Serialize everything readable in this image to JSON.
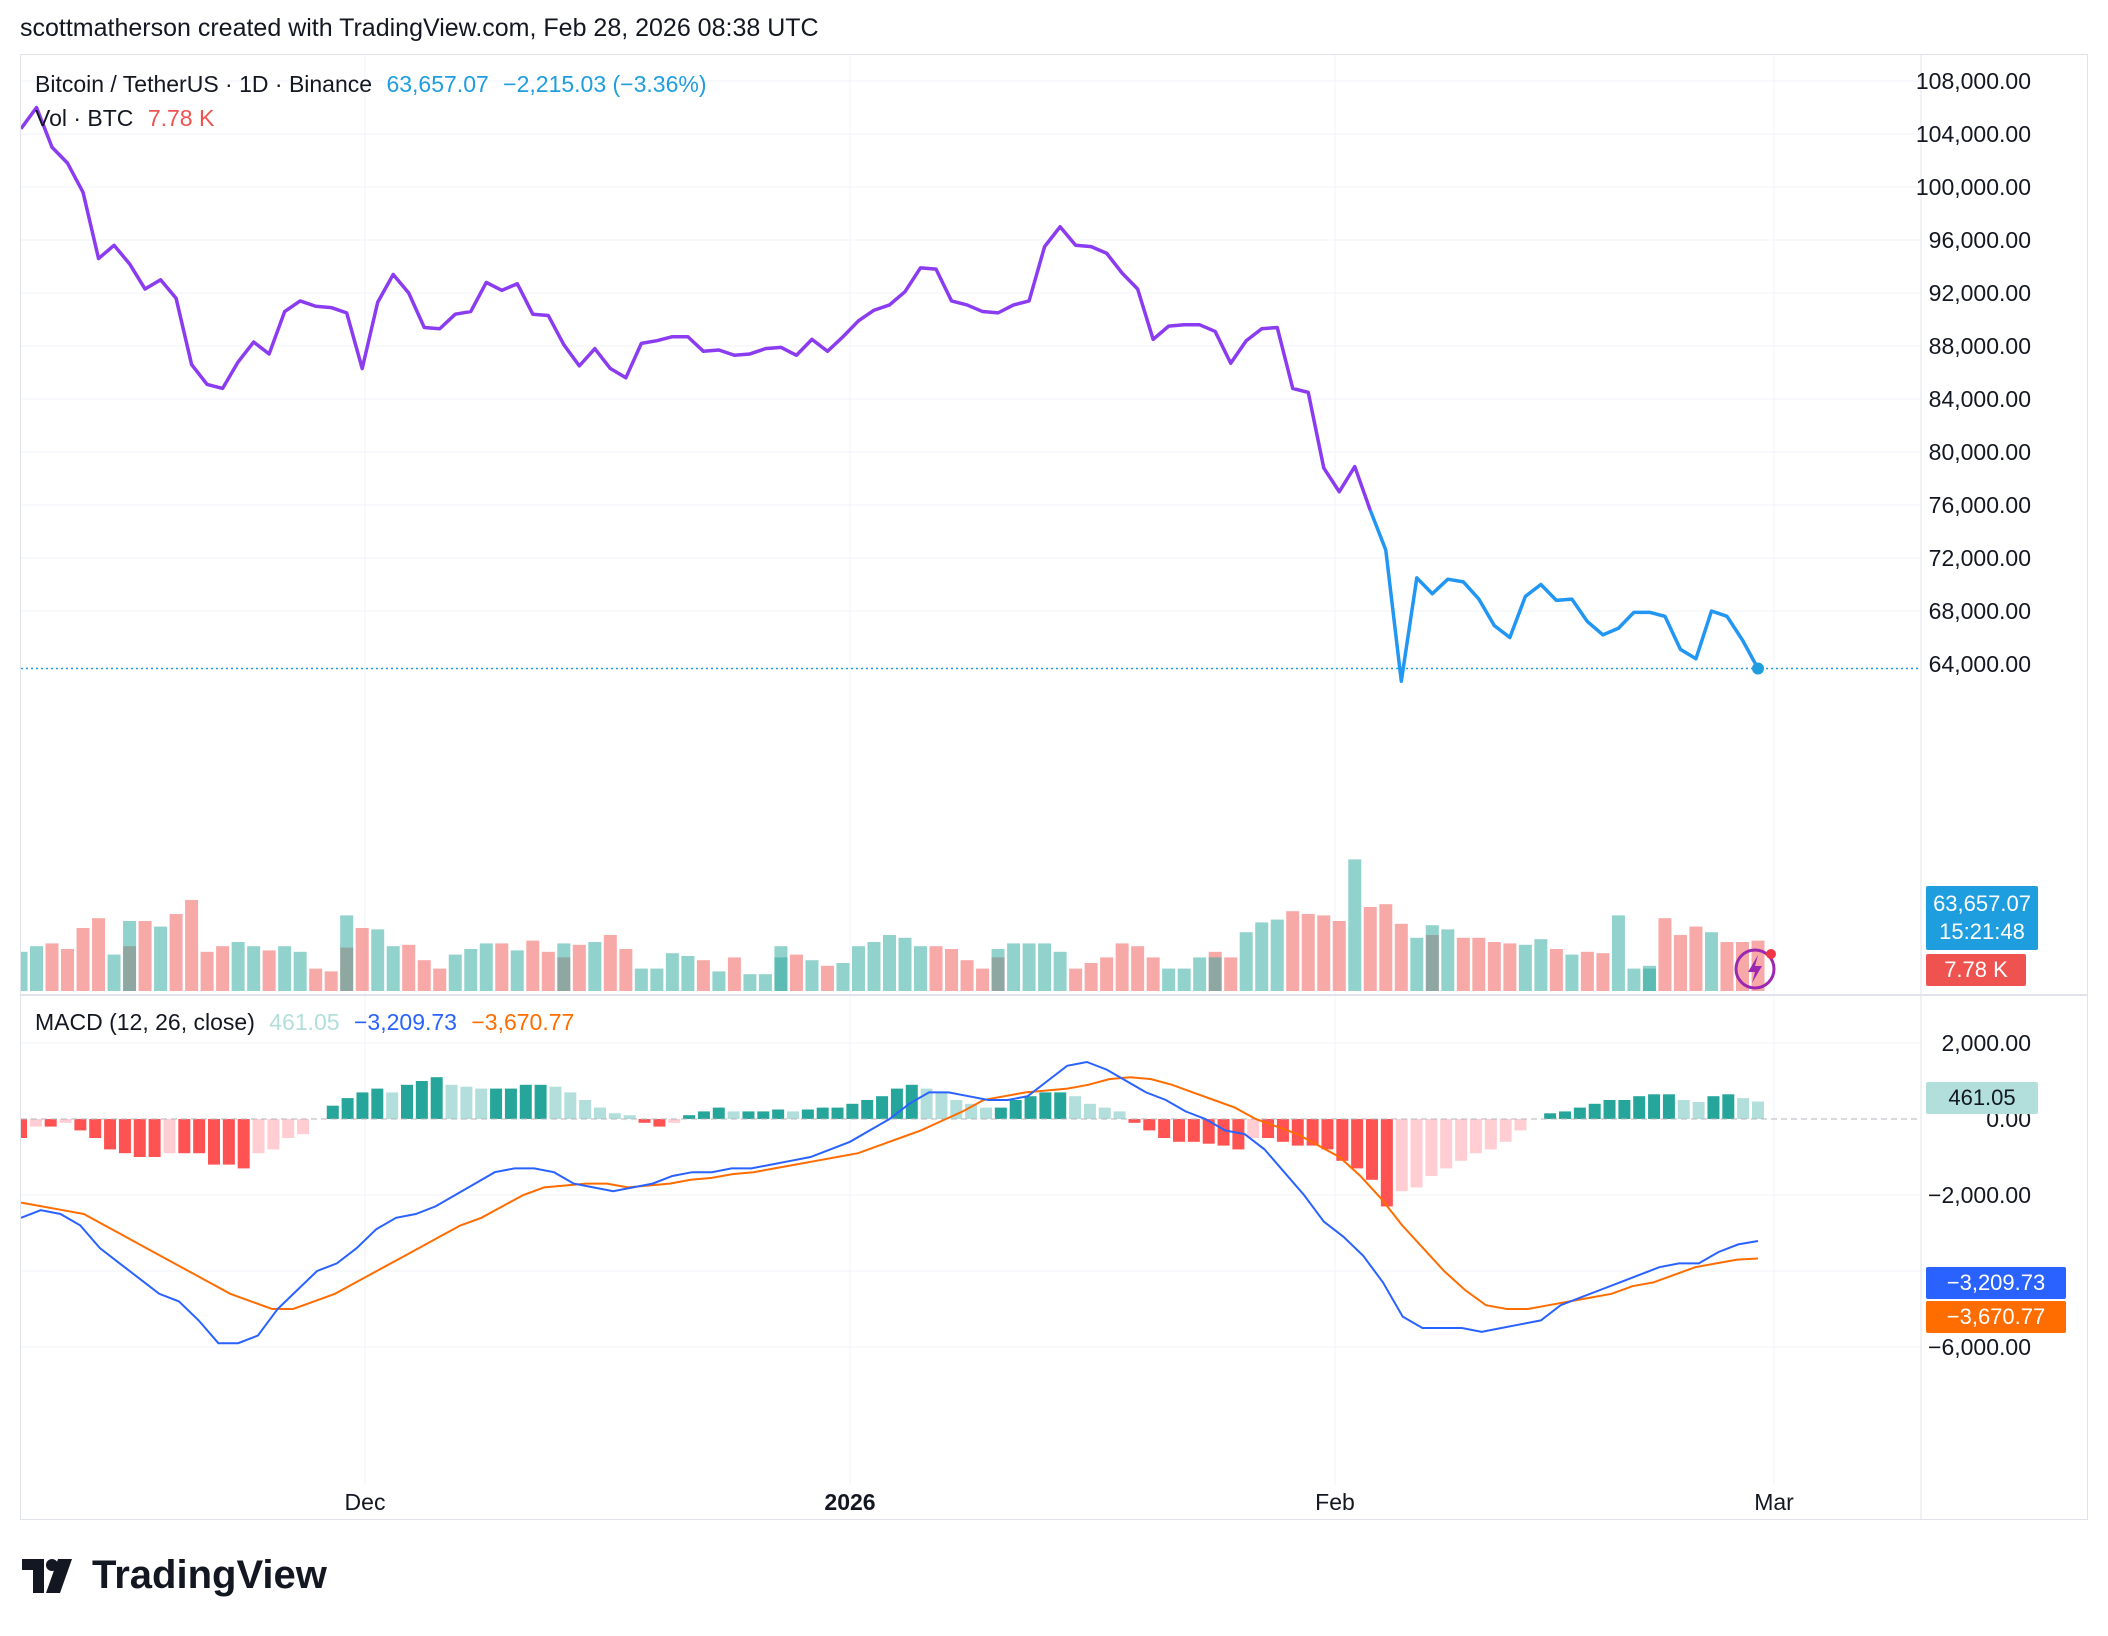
{
  "header": {
    "text": "scottmatherson created with TradingView.com, Feb 28, 2026 08:38 UTC"
  },
  "legend": {
    "symbol": "Bitcoin / TetherUS · 1D · Binance",
    "last": "63,657.07",
    "change": "−2,215.03 (−3.36%)",
    "vol_label": "Vol · BTC",
    "vol_value": "7.78 K",
    "macd_label": "MACD (12, 26, close)",
    "macd_hist": "461.05",
    "macd_line": "−3,209.73",
    "macd_signal": "−3,670.77"
  },
  "tags": {
    "price": "63,657.07",
    "countdown": "15:21:48",
    "volume": "7.78 K",
    "macd_hist": "461.05",
    "macd_line": "−3,209.73",
    "macd_signal": "−3,670.77"
  },
  "branding": {
    "logo_text": "TradingView"
  },
  "colors": {
    "price_line_early": "#8b3cf0",
    "price_line_late": "#2196f3",
    "up": "#26a69a",
    "down": "#ef5350",
    "macd_line": "#2962ff",
    "signal_line": "#ff6d00",
    "tag_price": "#1e9ede"
  },
  "chart_data": [
    {
      "type": "line",
      "title": "Bitcoin / TetherUS · 1D · Binance",
      "ylim": [
        62000,
        109000
      ],
      "y_ticks": [
        "108,000.00",
        "104,000.00",
        "100,000.00",
        "96,000.00",
        "92,000.00",
        "88,000.00",
        "84,000.00",
        "80,000.00",
        "76,000.00",
        "72,000.00",
        "68,000.00"
      ],
      "x_ticks": [
        "Dec",
        "2026",
        "Feb",
        "Mar"
      ],
      "series": [
        {
          "values": [
            104400,
            106000,
            103000,
            101800,
            99600,
            94600,
            95600,
            94200,
            92300,
            93000,
            91600,
            86600,
            85100,
            84800,
            86800,
            88300,
            87400,
            90600,
            91400,
            91000,
            90900,
            90500,
            86300,
            91300,
            93400,
            92000,
            89400,
            89300,
            90400,
            90600,
            92800,
            92200,
            92700,
            90400,
            90300,
            88100,
            86500,
            87800,
            86300,
            85600,
            88200,
            88400,
            88700,
            88700,
            87600,
            87700,
            87300,
            87400,
            87800,
            87900,
            87300,
            88500,
            87600,
            88700,
            89900,
            90700,
            91100,
            92100,
            93900,
            93800,
            91400,
            91100,
            90600,
            90500,
            91100,
            91400,
            95500,
            97000,
            95600,
            95500,
            95000,
            93500,
            92300,
            88500,
            89500,
            89600,
            89600,
            89100,
            86700,
            88400,
            89300,
            89400,
            84800,
            84500,
            78800,
            77000,
            78900,
            75600,
            72600,
            62700,
            70500,
            69300,
            70400,
            70200,
            68900,
            66900,
            66000,
            69100,
            70000,
            68800,
            68900,
            67200,
            66200,
            66700,
            67900,
            67900,
            67600,
            65100,
            64400,
            68000,
            67600,
            65800,
            63657
          ]
        }
      ]
    },
    {
      "type": "bar",
      "title": "Vol · BTC",
      "values": [
        7.78
      ],
      "series": [
        {
          "values": [
            28,
            32,
            34,
            30,
            45,
            52,
            26,
            32,
            50,
            50,
            46,
            55,
            65,
            28,
            32,
            35,
            32,
            29,
            32,
            28,
            16,
            14,
            31,
            54,
            45,
            44,
            32,
            33,
            22,
            16,
            26,
            30,
            34,
            34,
            29,
            36,
            28,
            24,
            34,
            33,
            35,
            40,
            30,
            16,
            16,
            27,
            25,
            22,
            14,
            24,
            12,
            12,
            24,
            32,
            26,
            22,
            18,
            20,
            32,
            35,
            40,
            38,
            32,
            32,
            30,
            22,
            16,
            24,
            30,
            34,
            34,
            34,
            28,
            16,
            20,
            24,
            34,
            32,
            24,
            16,
            16,
            24,
            28,
            24,
            24,
            42,
            49,
            51,
            57,
            55,
            54,
            50,
            94,
            60,
            62,
            48,
            38,
            40,
            47,
            44,
            38,
            38,
            35,
            34,
            33,
            37,
            30,
            26,
            28,
            27,
            54,
            16,
            16,
            18,
            52,
            40,
            46,
            42,
            35,
            35,
            36
          ]
        }
      ]
    },
    {
      "type": "bar",
      "title": "MACD (12, 26, close)",
      "ylim": [
        -6500,
        2100
      ],
      "y_ticks": [
        "2,000.00",
        "0.00",
        "−2,000.00",
        "−6,000.00"
      ],
      "series": [
        {
          "name": "461.05",
          "values": [
            -500,
            -200,
            -200,
            -100,
            -300,
            -500,
            -800,
            -900,
            -1000,
            -1000,
            -900,
            -900,
            -900,
            -1200,
            -1200,
            -1300,
            -900,
            -800,
            -500,
            -400,
            0,
            350,
            550,
            700,
            800,
            700,
            900,
            1000,
            1100,
            900,
            850,
            800,
            800,
            800,
            900,
            900,
            850,
            700,
            500,
            300,
            150,
            100,
            -100,
            -200,
            -100,
            100,
            200,
            300,
            200,
            200,
            200,
            250,
            200,
            250,
            300,
            300,
            400,
            500,
            600,
            800,
            900,
            800,
            700,
            500,
            400,
            300,
            300,
            500,
            600,
            700,
            700,
            600,
            400,
            300,
            200,
            -100,
            -300,
            -500,
            -600,
            -600,
            -650,
            -700,
            -800,
            -500,
            -500,
            -600,
            -700,
            -700,
            -800,
            -1100,
            -1300,
            -1600,
            -2300,
            -1900,
            -1800,
            -1500,
            -1300,
            -1100,
            -900,
            -800,
            -600,
            -300,
            0,
            150,
            200,
            300,
            400,
            500,
            500,
            600,
            650,
            650,
            500,
            450,
            600,
            650,
            550,
            461
          ]
        },
        {
          "name": "−3,209.73",
          "values": [
            -2600,
            -2400,
            -2500,
            -2800,
            -3400,
            -3800,
            -4200,
            -4600,
            -4800,
            -5300,
            -5900,
            -5900,
            -5700,
            -5000,
            -4500,
            -4000,
            -3800,
            -3400,
            -2900,
            -2600,
            -2500,
            -2300,
            -2000,
            -1700,
            -1400,
            -1300,
            -1300,
            -1400,
            -1700,
            -1800,
            -1900,
            -1800,
            -1700,
            -1500,
            -1400,
            -1400,
            -1300,
            -1300,
            -1200,
            -1100,
            -1000,
            -800,
            -600,
            -300,
            0,
            400,
            700,
            700,
            600,
            500,
            500,
            600,
            1000,
            1400,
            1500,
            1300,
            1000,
            700,
            500,
            200,
            0,
            -300,
            -400,
            -800,
            -1400,
            -2000,
            -2700,
            -3100,
            -3600,
            -4300,
            -5200,
            -5500,
            -5500,
            -5500,
            -5600,
            -5500,
            -5400,
            -5300,
            -4900,
            -4700,
            -4500,
            -4300,
            -4100,
            -3900,
            -3800,
            -3800,
            -3500,
            -3300,
            -3210
          ]
        },
        {
          "name": "−3,670.77",
          "values": [
            -2200,
            -2300,
            -2400,
            -2500,
            -2800,
            -3100,
            -3400,
            -3700,
            -4000,
            -4300,
            -4600,
            -4800,
            -5000,
            -5000,
            -4800,
            -4600,
            -4300,
            -4000,
            -3700,
            -3400,
            -3100,
            -2800,
            -2600,
            -2300,
            -2000,
            -1800,
            -1750,
            -1700,
            -1700,
            -1800,
            -1750,
            -1700,
            -1600,
            -1550,
            -1450,
            -1400,
            -1300,
            -1200,
            -1100,
            -1000,
            -900,
            -700,
            -500,
            -300,
            -50,
            200,
            500,
            600,
            700,
            750,
            800,
            900,
            1050,
            1100,
            1050,
            900,
            700,
            500,
            300,
            0,
            -200,
            -400,
            -700,
            -1000,
            -1500,
            -2100,
            -2800,
            -3400,
            -4000,
            -4500,
            -4900,
            -5000,
            -5000,
            -4900,
            -4800,
            -4700,
            -4600,
            -4400,
            -4300,
            -4100,
            -3900,
            -3800,
            -3700,
            -3670
          ]
        }
      ]
    }
  ]
}
